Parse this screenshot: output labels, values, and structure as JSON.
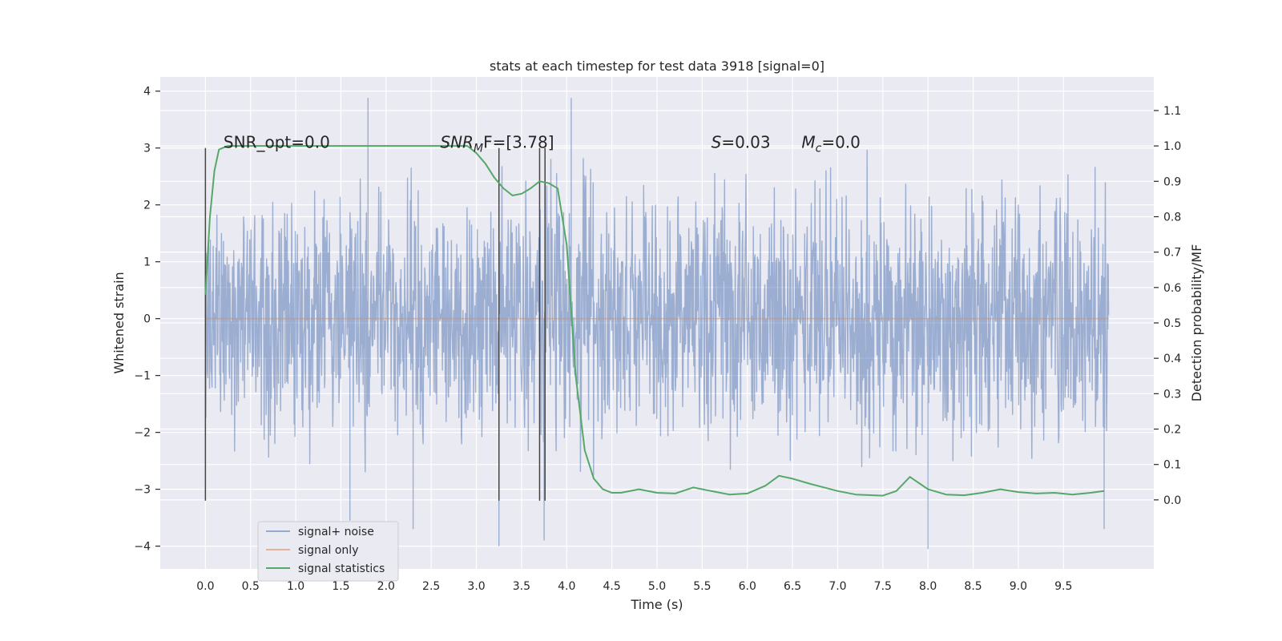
{
  "chart_data": {
    "type": "line",
    "title": "stats at each timestep for test data 3918 [signal=0]",
    "xlabel": "Time (s)",
    "ylabel_left": "Whitened strain",
    "ylabel_right": "Detection probability/MF",
    "xlim": [
      -0.5,
      10.5
    ],
    "ylim_left": [
      -4.4,
      4.25
    ],
    "ylim_right": [
      -0.195,
      1.195
    ],
    "x_ticks": [
      "0.0",
      "0.5",
      "1.0",
      "1.5",
      "2.0",
      "2.5",
      "3.0",
      "3.5",
      "4.0",
      "4.5",
      "5.0",
      "5.5",
      "6.0",
      "6.5",
      "7.0",
      "7.5",
      "8.0",
      "8.5",
      "9.0",
      "9.5"
    ],
    "y_ticks_left": [
      -4,
      -3,
      -2,
      -1,
      0,
      1,
      2,
      3,
      4
    ],
    "y_ticks_right": [
      "0.0",
      "0.1",
      "0.2",
      "0.3",
      "0.4",
      "0.5",
      "0.6",
      "0.7",
      "0.8",
      "0.9",
      "1.0",
      "1.1"
    ],
    "grid": true,
    "legend_placement": "lower-left",
    "series": [
      {
        "name": "signal+ noise",
        "axis": "left",
        "color": "#4c72b0",
        "x_range": [
          0.0,
          10.0
        ],
        "typical_range": [
          -2.6,
          2.6
        ],
        "peaks": [
          {
            "x": 1.8,
            "y": 3.88
          },
          {
            "x": 4.05,
            "y": 3.88
          },
          {
            "x": 3.25,
            "y": -4.0
          },
          {
            "x": 3.75,
            "y": -3.9
          },
          {
            "x": 8.0,
            "y": -4.05
          },
          {
            "x": 9.95,
            "y": -3.7
          },
          {
            "x": 2.3,
            "y": -3.7
          },
          {
            "x": 1.6,
            "y": -3.55
          }
        ]
      },
      {
        "name": "signal only",
        "axis": "left",
        "color": "#dd8452",
        "x": [
          0.0,
          10.0
        ],
        "y": [
          0.0,
          0.0
        ]
      },
      {
        "name": "signal statistics",
        "axis": "right",
        "color": "#55a868",
        "x": [
          0.0,
          0.05,
          0.1,
          0.15,
          0.25,
          0.5,
          1.0,
          1.5,
          2.0,
          2.5,
          2.9,
          3.0,
          3.1,
          3.2,
          3.3,
          3.4,
          3.5,
          3.6,
          3.7,
          3.8,
          3.9,
          4.0,
          4.1,
          4.2,
          4.3,
          4.4,
          4.5,
          4.6,
          4.8,
          5.0,
          5.2,
          5.4,
          5.6,
          5.8,
          6.0,
          6.2,
          6.35,
          6.5,
          6.7,
          7.0,
          7.2,
          7.5,
          7.65,
          7.8,
          8.0,
          8.2,
          8.4,
          8.6,
          8.8,
          9.0,
          9.2,
          9.4,
          9.6,
          9.8,
          9.95
        ],
        "y": [
          0.58,
          0.8,
          0.93,
          0.99,
          1.0,
          1.0,
          1.0,
          1.0,
          1.0,
          1.0,
          1.0,
          0.98,
          0.95,
          0.91,
          0.88,
          0.86,
          0.865,
          0.88,
          0.9,
          0.895,
          0.88,
          0.72,
          0.35,
          0.14,
          0.06,
          0.03,
          0.02,
          0.02,
          0.03,
          0.02,
          0.018,
          0.035,
          0.025,
          0.015,
          0.018,
          0.04,
          0.068,
          0.06,
          0.045,
          0.025,
          0.015,
          0.012,
          0.025,
          0.065,
          0.03,
          0.015,
          0.013,
          0.02,
          0.03,
          0.022,
          0.018,
          0.02,
          0.015,
          0.02,
          0.025
        ]
      }
    ],
    "vertical_markers": {
      "color": "#444444",
      "x": [
        0.0,
        3.25,
        3.7,
        3.76
      ],
      "y_from": -3.2,
      "y_to": 3.0
    },
    "annotations": {
      "snr_opt": {
        "text": "SNR_opt=0.0",
        "x": 0.2,
        "y": 3.0
      },
      "snr_mf": {
        "prefix": "SNR",
        "subscript": "M",
        "suffix": "F=[3.78]",
        "x": 2.6,
        "y": 3.0
      },
      "s_stat": {
        "var": "S",
        "value": "=0.03",
        "x": 5.6,
        "y": 3.0
      },
      "mchirp": {
        "var": "M",
        "subscript": "c",
        "value": "=0.0",
        "x": 6.6,
        "y": 3.0
      }
    }
  }
}
